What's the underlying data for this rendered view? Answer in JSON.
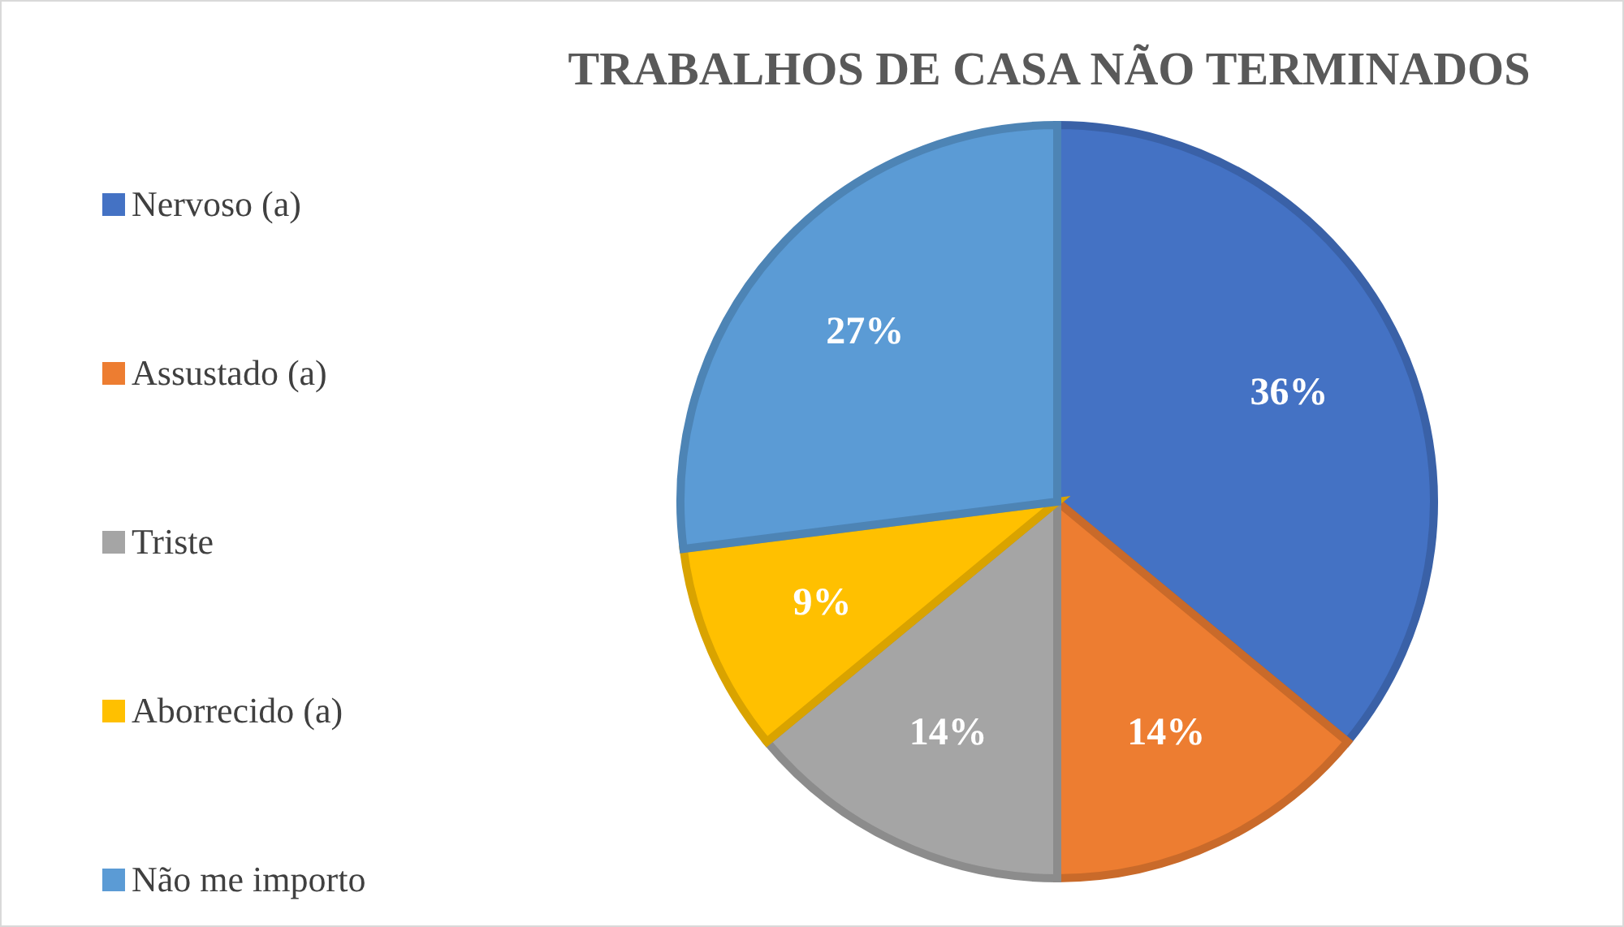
{
  "chart_data": {
    "type": "pie",
    "title": "TRABALHOS DE CASA NÃO TERMINADOS",
    "categories": [
      "Nervoso (a)",
      "Assustado (a)",
      "Triste",
      "Aborrecido (a)",
      "Não me importo"
    ],
    "values": [
      36,
      14,
      14,
      9,
      27
    ],
    "value_labels": [
      "36%",
      "14%",
      "14%",
      "9%",
      "27%"
    ],
    "colors": [
      "#4472c4",
      "#ed7d31",
      "#a5a5a5",
      "#ffc000",
      "#5b9bd5"
    ],
    "legend": "left"
  }
}
